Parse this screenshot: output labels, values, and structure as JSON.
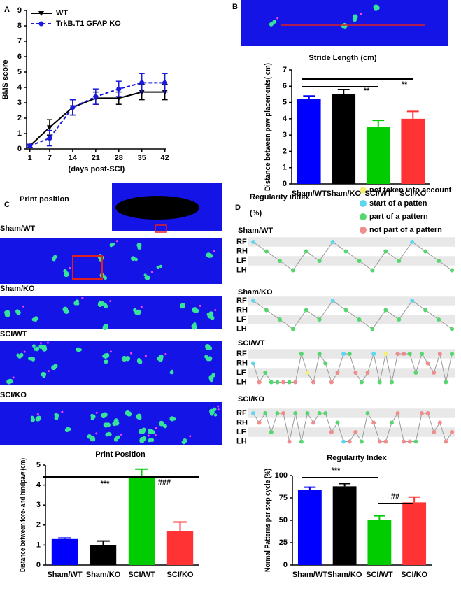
{
  "panels": {
    "letters": [
      "A",
      "B",
      "C",
      "D"
    ],
    "print_heading": "Print position",
    "regularity_heading": [
      "Regularity index",
      "(%)"
    ],
    "group_labels": [
      "Sham/WT",
      "Sham/KO",
      "SCI/WT",
      "SCI/KO"
    ],
    "step_rows": [
      "RF",
      "RH",
      "LF",
      "LH"
    ],
    "pattern_legend": [
      {
        "label": "not taken into account",
        "color": "#f3ef7a"
      },
      {
        "label": "start of a patten",
        "color": "#5fd6ef"
      },
      {
        "label": "part of a pattern",
        "color": "#55d66e"
      },
      {
        "label": "not part of a pattern",
        "color": "#f08c8c"
      }
    ]
  },
  "chart_data": [
    {
      "type": "line",
      "y_label": "BMS score",
      "x_label": "(days post-SCI)",
      "x": [
        1,
        7,
        14,
        21,
        28,
        35,
        42
      ],
      "xlim": [
        0,
        42.5
      ],
      "xticks": [
        1,
        7,
        14,
        21,
        28,
        35,
        42
      ],
      "ylim": [
        0,
        9
      ],
      "yticks": [
        0,
        1,
        2,
        3,
        4,
        5,
        6,
        7,
        8,
        9
      ],
      "series": [
        {
          "name": "WT",
          "color": "#000000",
          "values": [
            0.2,
            1.4,
            2.7,
            3.3,
            3.3,
            3.7,
            3.7
          ],
          "errors": [
            0.1,
            0.5,
            0.5,
            0.4,
            0.4,
            0.5,
            0.5
          ]
        },
        {
          "name": "TrkB.T1 GFAP KO",
          "color": "#1a1adc",
          "dashed": true,
          "values": [
            0.2,
            0.7,
            2.7,
            3.4,
            3.9,
            4.3,
            4.3
          ],
          "errors": [
            0.1,
            0.5,
            0.5,
            0.5,
            0.5,
            0.6,
            0.6
          ]
        }
      ]
    },
    {
      "type": "bar",
      "title": "Stride Length (cm)",
      "y_label": "Distance between paw placements( cm)",
      "categories": [
        "Sham/WT",
        "Sham/KO",
        "SCI/WT",
        "SCI/KO"
      ],
      "values": [
        5.2,
        5.5,
        3.5,
        4.0
      ],
      "errors": [
        0.2,
        0.3,
        0.4,
        0.45
      ],
      "colors": [
        "#0000ff",
        "#000000",
        "#00cc00",
        "#ff3333"
      ],
      "ylim": [
        0,
        7
      ],
      "yticks": [
        0,
        1,
        2,
        3,
        4,
        5,
        6,
        7
      ],
      "annotations": [
        "**",
        "**"
      ]
    },
    {
      "type": "bar",
      "title": "Print Position",
      "y_label": "Distance between fore- and hindpaw (cm)",
      "categories": [
        "Sham/WT",
        "Sham/KO",
        "SCI/WT",
        "SCI/KO"
      ],
      "values": [
        1.3,
        1.0,
        4.35,
        1.7
      ],
      "errors": [
        0.05,
        0.2,
        0.45,
        0.45
      ],
      "colors": [
        "#0000ff",
        "#000000",
        "#00cc00",
        "#ff3333"
      ],
      "ylim": [
        0,
        5
      ],
      "yticks": [
        0,
        1,
        2,
        3,
        4,
        5
      ],
      "annotations": [
        "***",
        "###"
      ]
    },
    {
      "type": "bar",
      "title": "Regularity Index",
      "y_label": "Normal Patterns per step cycle (%)",
      "categories": [
        "Sham/WT",
        "Sham/KO",
        "SCI/WT",
        "SCI/KO"
      ],
      "values": [
        84,
        88,
        50,
        70
      ],
      "errors": [
        3,
        3,
        5,
        6
      ],
      "colors": [
        "#0000ff",
        "#000000",
        "#00cc00",
        "#ff3333"
      ],
      "ylim": [
        0,
        100
      ],
      "yticks": [
        0,
        25,
        50,
        75,
        100
      ],
      "annotations": [
        "***",
        "##"
      ]
    }
  ]
}
